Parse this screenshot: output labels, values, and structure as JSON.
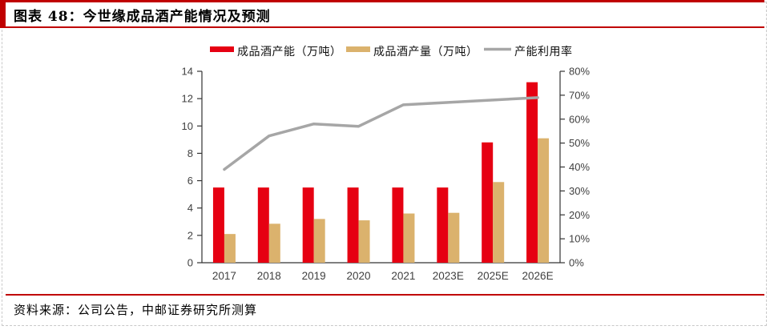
{
  "header": {
    "title": "图表 48：今世缘成品酒产能情况及预测"
  },
  "footer": {
    "source": "资料来源：公司公告，中邮证券研究所测算"
  },
  "colors": {
    "accent_red": "#c00000",
    "bar_red": "#e60012",
    "bar_tan": "#dbb26d",
    "line_gray": "#a6a6a6",
    "axis": "#333333",
    "dashed_border": "#c9c9c9"
  },
  "chart_data": {
    "type": "bar",
    "subtype": "bar-line-combo",
    "categories": [
      "2017",
      "2018",
      "2019",
      "2020",
      "2021",
      "2023E",
      "2025E",
      "2026E"
    ],
    "series": [
      {
        "name": "成品酒产能（万吨）",
        "kind": "bar",
        "axis": "left",
        "color": "#e60012",
        "values": [
          5.5,
          5.5,
          5.5,
          5.5,
          5.5,
          5.5,
          8.8,
          13.2
        ]
      },
      {
        "name": "成品酒产量（万吨）",
        "kind": "bar",
        "axis": "left",
        "color": "#dbb26d",
        "values": [
          2.1,
          2.85,
          3.2,
          3.1,
          3.6,
          3.65,
          5.9,
          9.1
        ]
      },
      {
        "name": "产能利用率",
        "kind": "line",
        "axis": "right",
        "color": "#a6a6a6",
        "values": [
          39,
          53,
          58,
          57,
          66,
          67,
          68,
          69
        ]
      }
    ],
    "left_axis": {
      "min": 0,
      "max": 14,
      "step": 2
    },
    "right_axis": {
      "min": 0,
      "max": 80,
      "step": 10,
      "suffix": "%"
    },
    "legend_position": "top",
    "grid": false,
    "title": "",
    "xlabel": "",
    "ylabel": ""
  }
}
